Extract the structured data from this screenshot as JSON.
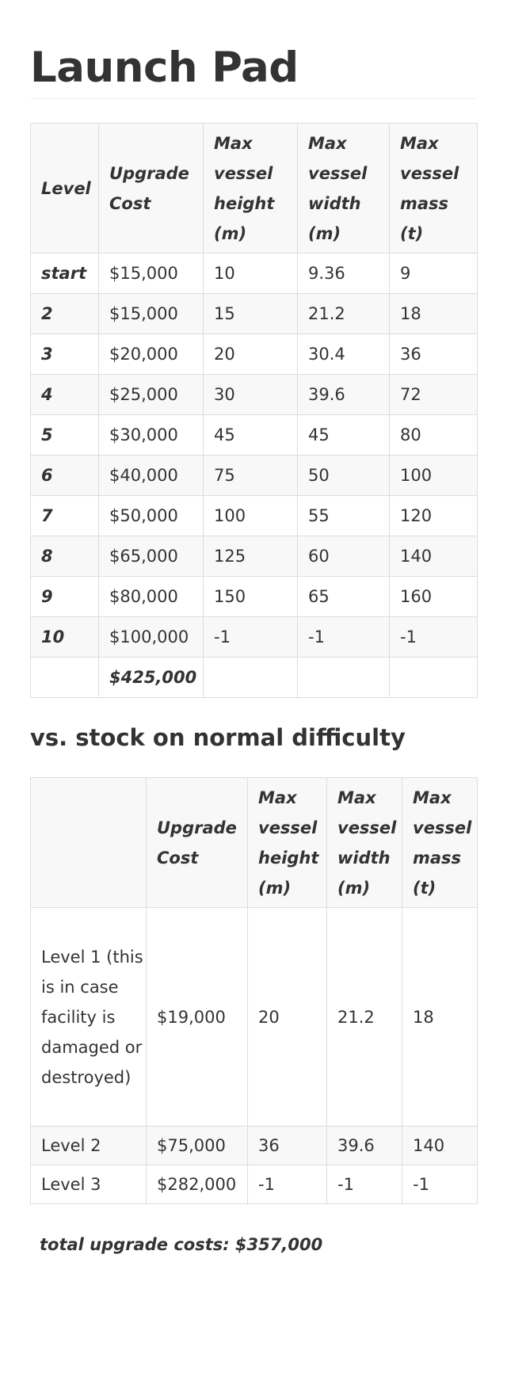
{
  "title": "Launch Pad",
  "main_table": {
    "headers": [
      "Level",
      "Upgrade Cost",
      "Max vessel height (m)",
      "Max vessel width (m)",
      "Max vessel mass (t)"
    ],
    "rows": [
      [
        "start",
        "$15,000",
        "10",
        "9.36",
        "9"
      ],
      [
        "2",
        "$15,000",
        "15",
        "21.2",
        "18"
      ],
      [
        "3",
        "$20,000",
        "20",
        "30.4",
        "36"
      ],
      [
        "4",
        "$25,000",
        "30",
        "39.6",
        "72"
      ],
      [
        "5",
        "$30,000",
        "45",
        "45",
        "80"
      ],
      [
        "6",
        "$40,000",
        "75",
        "50",
        "100"
      ],
      [
        "7",
        "$50,000",
        "100",
        "55",
        "120"
      ],
      [
        "8",
        "$65,000",
        "125",
        "60",
        "140"
      ],
      [
        "9",
        "$80,000",
        "150",
        "65",
        "160"
      ],
      [
        "10",
        "$100,000",
        "-1",
        "-1",
        "-1"
      ]
    ],
    "total": "$425,000"
  },
  "stock_section": {
    "title": "vs. stock on normal difficulty",
    "headers": [
      "",
      "Upgrade Cost",
      "Max vessel height (m)",
      "Max vessel width (m)",
      "Max vessel mass (t)"
    ],
    "rows": [
      [
        "Level 1 (this is in case facility is damaged or destroyed)",
        "$19,000",
        "20",
        "21.2",
        "18"
      ],
      [
        "Level 2",
        "$75,000",
        "36",
        "39.6",
        "140"
      ],
      [
        "Level 3",
        "$282,000",
        "-1",
        "-1",
        "-1"
      ]
    ],
    "total_note": "total upgrade costs: $357,000"
  }
}
